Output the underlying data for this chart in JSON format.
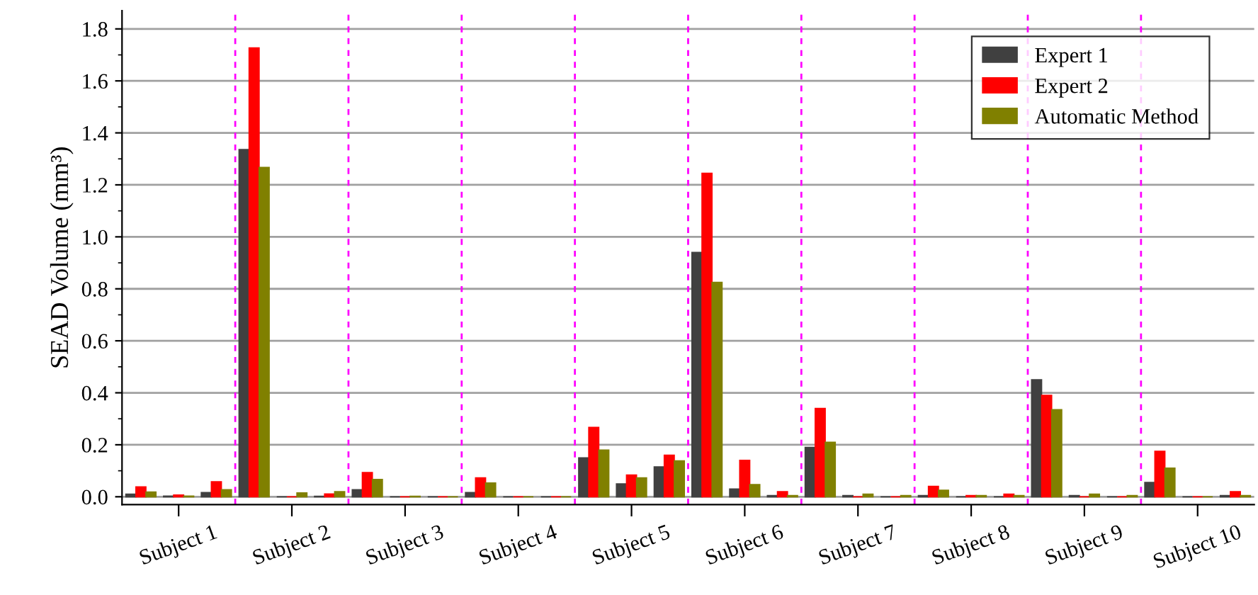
{
  "chart_data": {
    "type": "bar",
    "ylabel": "SEAD Volume (mm³)",
    "categories": [
      null,
      "Subject 1",
      null,
      null,
      "Subject 2",
      null,
      null,
      "Subject 3",
      null,
      null,
      "Subject 4",
      null,
      null,
      "Subject 5",
      null,
      null,
      "Subject 6",
      null,
      null,
      "Subject 7",
      null,
      null,
      "Subject 8",
      null,
      null,
      "Subject 9",
      null,
      null,
      "Subject 10",
      null
    ],
    "series": [
      {
        "name": "Expert 1",
        "color": "#404040",
        "values": [
          0.01,
          0.003,
          0.016,
          1.336,
          0,
          0.002,
          0.027,
          0,
          0,
          0.016,
          0,
          0,
          0.15,
          0.05,
          0.115,
          0.94,
          0.03,
          0.005,
          0.19,
          0.005,
          0,
          0.005,
          0,
          0,
          0.45,
          0.005,
          0,
          0.055,
          0,
          0.005
        ]
      },
      {
        "name": "Expert 2",
        "color": "#ff0000",
        "values": [
          0.038,
          0.007,
          0.058,
          1.727,
          0,
          0.011,
          0.093,
          0,
          0,
          0.073,
          0,
          0,
          0.267,
          0.084,
          0.16,
          1.245,
          0.14,
          0.02,
          0.34,
          0,
          0,
          0.04,
          0.005,
          0.01,
          0.39,
          0,
          0,
          0.175,
          0,
          0.02
        ]
      },
      {
        "name": "Automatic Method",
        "color": "#808000",
        "values": [
          0.018,
          0.003,
          0.027,
          1.267,
          0.015,
          0.02,
          0.067,
          0.002,
          0,
          0.053,
          0,
          0,
          0.18,
          0.073,
          0.138,
          0.825,
          0.047,
          0.005,
          0.21,
          0.01,
          0.005,
          0.025,
          0.005,
          0.005,
          0.335,
          0.01,
          0.005,
          0.11,
          0,
          0.005
        ]
      }
    ],
    "ylim": [
      -0.03,
      1.87
    ],
    "yticks": [
      {
        "value": 0,
        "label": "0.0"
      },
      {
        "value": 0.2,
        "label": "0.2"
      },
      {
        "value": 0.4,
        "label": "0.4"
      },
      {
        "value": 0.6,
        "label": "0.6"
      },
      {
        "value": 0.8,
        "label": "0.8"
      },
      {
        "value": 1.0,
        "label": "1.0"
      },
      {
        "value": 1.2,
        "label": "1.2"
      },
      {
        "value": 1.4,
        "label": "1.4"
      },
      {
        "value": 1.6,
        "label": "1.6"
      },
      {
        "value": 1.8,
        "label": "1.8"
      }
    ],
    "grid": "y",
    "legend": "top right"
  }
}
